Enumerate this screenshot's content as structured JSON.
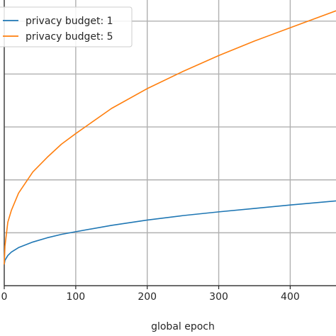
{
  "chart_data": {
    "type": "line",
    "xlabel": "global epoch",
    "ylabel": "",
    "title": "",
    "xlim": [
      0,
      470
    ],
    "ylim": [
      0,
      1.08
    ],
    "xticks": [
      0,
      100,
      200,
      300,
      400
    ],
    "xtick_labels": [
      "0",
      "100",
      "200",
      "300",
      "400"
    ],
    "ygrid": [
      0.0,
      0.2,
      0.4,
      0.6,
      0.8,
      1.0
    ],
    "grid": true,
    "legend_position": "top-left",
    "series": [
      {
        "name": "privacy budget: 1",
        "color": "#1f77b4",
        "x": [
          0,
          1,
          5,
          10,
          20,
          40,
          60,
          80,
          100,
          150,
          200,
          250,
          300,
          350,
          400,
          470
        ],
        "y": [
          0.08,
          0.096,
          0.114,
          0.127,
          0.144,
          0.165,
          0.181,
          0.194,
          0.204,
          0.228,
          0.248,
          0.265,
          0.279,
          0.292,
          0.305,
          0.322
        ]
      },
      {
        "name": "privacy budget: 5",
        "color": "#ff7f0e",
        "x": [
          0,
          1,
          5,
          10,
          20,
          40,
          60,
          80,
          100,
          150,
          200,
          250,
          300,
          350,
          400,
          470
        ],
        "y": [
          0.08,
          0.15,
          0.24,
          0.285,
          0.35,
          0.43,
          0.485,
          0.535,
          0.575,
          0.67,
          0.745,
          0.81,
          0.87,
          0.925,
          0.975,
          1.045
        ]
      }
    ]
  }
}
